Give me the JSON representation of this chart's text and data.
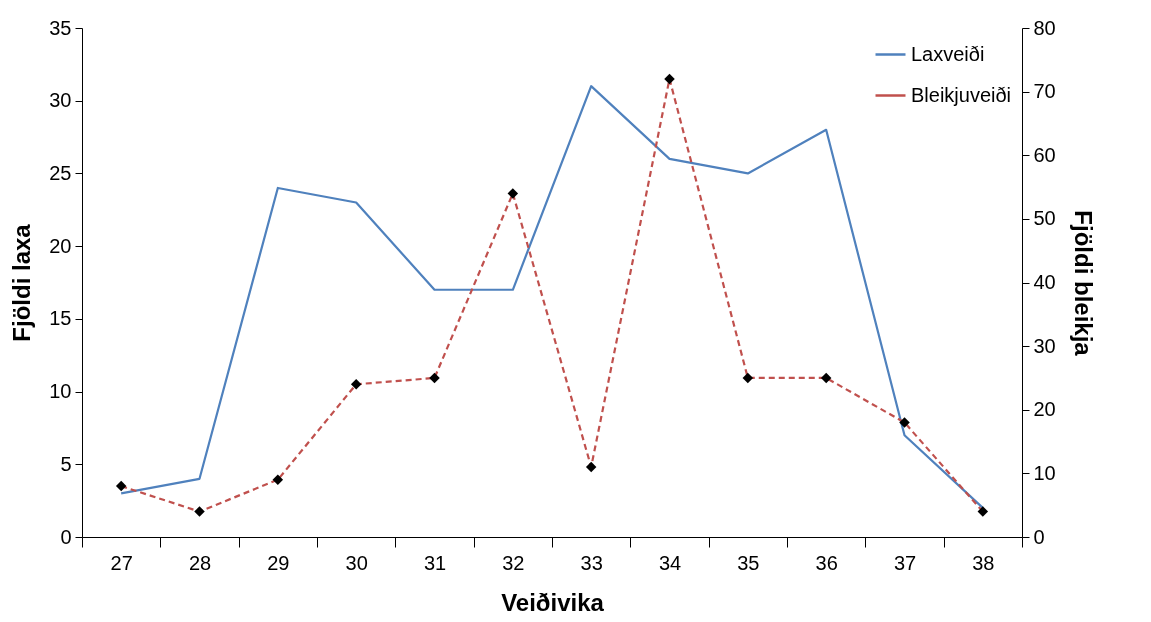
{
  "chart_data": {
    "type": "line",
    "xlabel": "Veiðivika",
    "ylabel": "Fjöldi laxa",
    "y2label": "Fjöldi bleikja",
    "categories": [
      "27",
      "28",
      "29",
      "30",
      "31",
      "32",
      "33",
      "34",
      "35",
      "36",
      "37",
      "38"
    ],
    "series": [
      {
        "name": "Laxveiði",
        "color": "#4f81bd",
        "marker": "none",
        "line_style": "solid",
        "values": [
          3,
          4,
          24,
          23,
          17,
          17,
          31,
          26,
          25,
          28,
          7,
          2
        ]
      },
      {
        "name": "Bleikjuveiði",
        "color": "#c0504d",
        "marker": "diamond",
        "line_style": "dashed",
        "axis": "y2",
        "values": [
          8,
          4,
          9,
          24,
          25,
          54,
          11,
          72,
          25,
          25,
          18,
          4
        ]
      }
    ],
    "ylim": [
      0,
      35
    ],
    "yticks": [
      0,
      5,
      10,
      15,
      20,
      25,
      30,
      35
    ],
    "y2lim": [
      0,
      80
    ],
    "y2ticks": [
      0,
      10,
      20,
      30,
      40,
      50,
      60,
      70,
      80
    ],
    "grid": false,
    "legend": "top right"
  }
}
